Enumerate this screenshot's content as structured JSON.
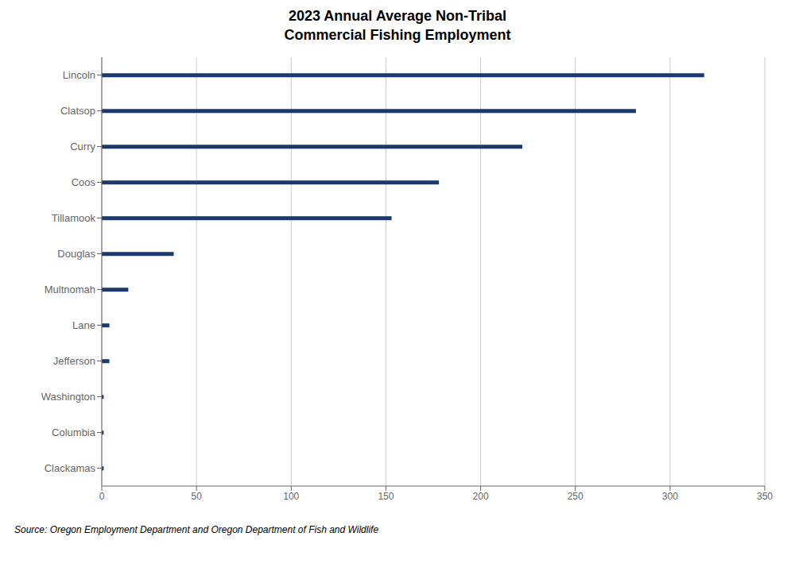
{
  "chart_data": {
    "type": "bar",
    "orientation": "horizontal",
    "title": "2023 Annual Average Non-Tribal\nCommercial Fishing Employment",
    "categories": [
      "Lincoln",
      "Clatsop",
      "Curry",
      "Coos",
      "Tillamook",
      "Douglas",
      "Multnomah",
      "Lane",
      "Jefferson",
      "Washington",
      "Columbia",
      "Clackamas"
    ],
    "values": [
      318,
      282,
      222,
      178,
      153,
      38,
      14,
      4,
      4,
      1,
      1,
      1
    ],
    "color": "#1B3A6B",
    "xlim": [
      0,
      350
    ],
    "xticks": [
      0,
      50,
      100,
      150,
      200,
      250,
      300,
      350
    ],
    "grid": true,
    "annotations": [
      "Source: Oregon Employment Department and Oregon Department of Fish and Wildlife"
    ]
  }
}
